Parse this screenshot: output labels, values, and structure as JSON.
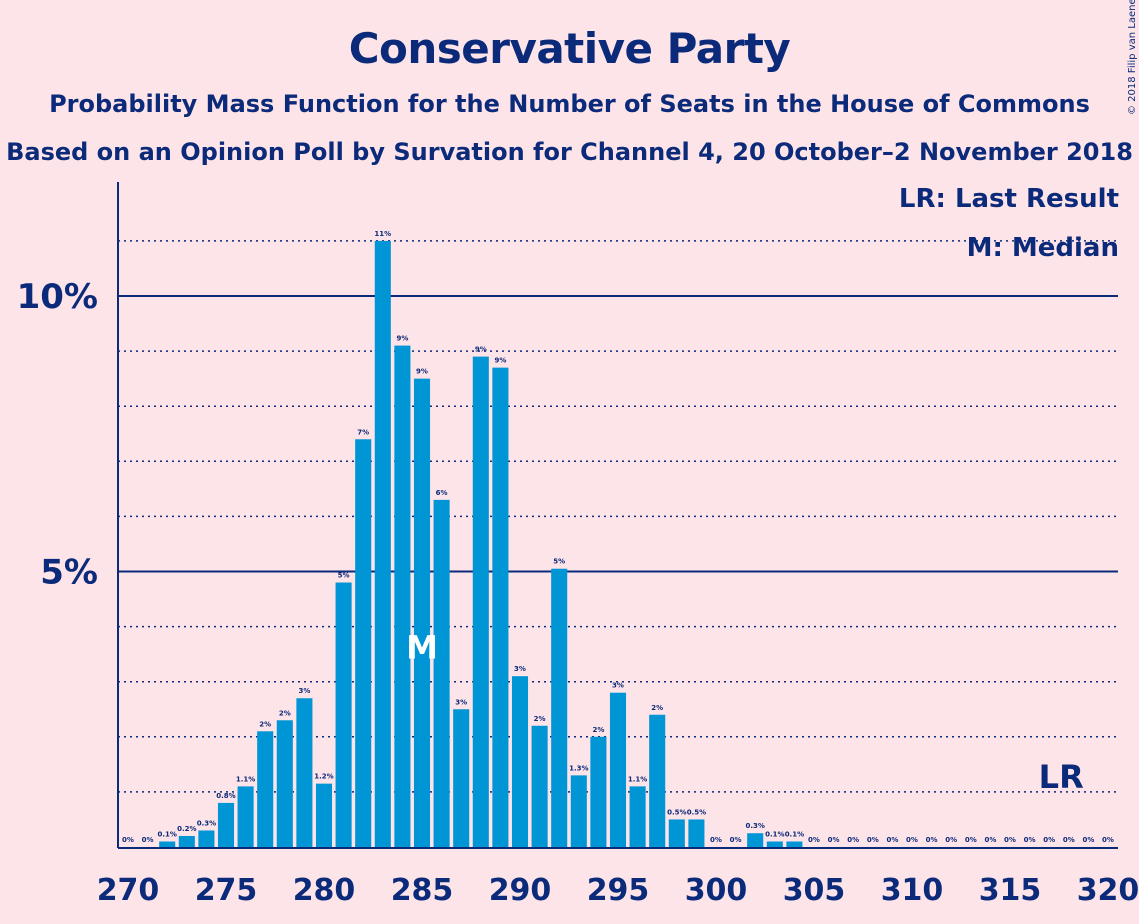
{
  "title": "Conservative Party",
  "subtitle": "Probability Mass Function for the Number of Seats in the House of Commons",
  "subtitle2": "Based on an Opinion Poll by Survation for Channel 4, 20 October–2 November 2018",
  "copyright": "© 2018 Filip van Laenen",
  "legend": {
    "last_result": "LR: Last Result",
    "median": "M: Median"
  },
  "colors": {
    "bar": "#0096d6",
    "text": "#0b2a7a",
    "background": "#fde4e8"
  },
  "chart_data": {
    "type": "bar",
    "x": [
      270,
      271,
      272,
      273,
      274,
      275,
      276,
      277,
      278,
      279,
      280,
      281,
      282,
      283,
      284,
      285,
      286,
      287,
      288,
      289,
      290,
      291,
      292,
      293,
      294,
      295,
      296,
      297,
      298,
      299,
      300,
      301,
      302,
      303,
      304,
      305,
      306,
      307,
      308,
      309,
      310,
      311,
      312,
      313,
      314,
      315,
      316,
      317,
      318,
      319,
      320
    ],
    "values": [
      0,
      0,
      0.1,
      0.2,
      0.3,
      0.8,
      1.1,
      2.1,
      2.3,
      2.7,
      1.15,
      4.8,
      7.4,
      11.0,
      9.1,
      8.5,
      6.3,
      2.5,
      8.9,
      8.7,
      3.1,
      2.2,
      5.05,
      1.3,
      2.0,
      2.8,
      1.1,
      2.4,
      0.5,
      0.5,
      0,
      0,
      0.25,
      0.1,
      0.1,
      0,
      0,
      0,
      0,
      0,
      0,
      0,
      0,
      0,
      0,
      0,
      0,
      0,
      0,
      0,
      0
    ],
    "labels": [
      "0%",
      "0%",
      "0.1%",
      "0.2%",
      "0.3%",
      "0.8%",
      "1.1%",
      "2%",
      "2%",
      "3%",
      "1.2%",
      "5%",
      "7%",
      "11%",
      "9%",
      "9%",
      "6%",
      "3%",
      "9%",
      "9%",
      "3%",
      "2%",
      "5%",
      "1.3%",
      "2%",
      "3%",
      "1.1%",
      "2%",
      "0.5%",
      "0.5%",
      "0%",
      "0%",
      "0.3%",
      "0.1%",
      "0.1%",
      "0%",
      "0%",
      "0%",
      "0%",
      "0%",
      "0%",
      "0%",
      "0%",
      "0%",
      "0%",
      "0%",
      "0%",
      "0%",
      "0%",
      "0%",
      "0%"
    ],
    "x_ticks": [
      270,
      275,
      280,
      285,
      290,
      295,
      300,
      305,
      310,
      315,
      320
    ],
    "y_ticks": [
      {
        "value": 5,
        "label": "5%"
      },
      {
        "value": 10,
        "label": "10%"
      }
    ],
    "y_unit": "%",
    "ylim": [
      0,
      11.5
    ],
    "xlim": [
      270,
      320
    ],
    "median": 285,
    "median_label": "M",
    "last_result": 317,
    "last_result_label": "LR"
  }
}
